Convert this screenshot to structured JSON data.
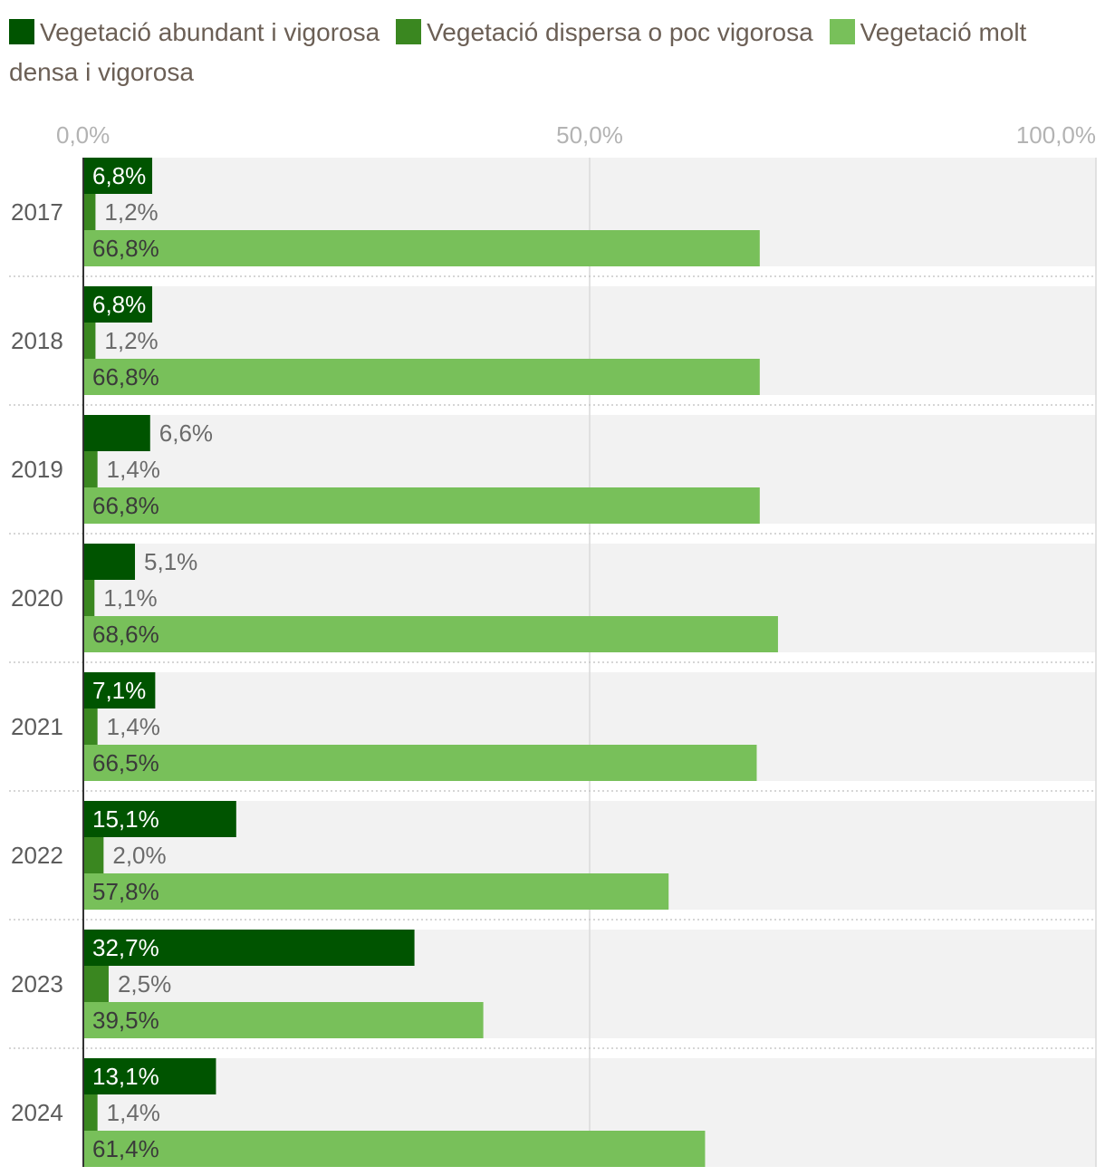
{
  "chart_data": {
    "type": "bar",
    "orientation": "horizontal",
    "categories": [
      "2017",
      "2018",
      "2019",
      "2020",
      "2021",
      "2022",
      "2023",
      "2024"
    ],
    "series": [
      {
        "name": "Vegetació abundant i vigorosa",
        "color": "#005400",
        "values": [
          6.8,
          6.8,
          6.6,
          5.1,
          7.1,
          15.1,
          32.7,
          13.1
        ],
        "labels": [
          "6,8%",
          "6,8%",
          "6,6%",
          "5,1%",
          "7,1%",
          "15,1%",
          "32,7%",
          "13,1%"
        ]
      },
      {
        "name": "Vegetació dispersa o poc vigorosa",
        "color": "#3a8720",
        "values": [
          1.2,
          1.2,
          1.4,
          1.1,
          1.4,
          2.0,
          2.5,
          1.4
        ],
        "labels": [
          "1,2%",
          "1,2%",
          "1,4%",
          "1,1%",
          "1,4%",
          "2,0%",
          "2,5%",
          "1,4%"
        ]
      },
      {
        "name": "Vegetació molt densa i vigorosa",
        "color": "#78c05a",
        "values": [
          66.8,
          66.8,
          66.8,
          68.6,
          66.5,
          57.8,
          39.5,
          61.4
        ],
        "labels": [
          "66,8%",
          "66,8%",
          "66,8%",
          "68,6%",
          "66,5%",
          "57,8%",
          "39,5%",
          "61,4%"
        ]
      }
    ],
    "xlim": [
      0,
      100
    ],
    "xticks": [
      0,
      50,
      100
    ],
    "xtick_labels": [
      "0,0%",
      "50,0%",
      "100,0%"
    ],
    "legend_position": "top",
    "title": "",
    "xlabel": "",
    "ylabel": ""
  }
}
